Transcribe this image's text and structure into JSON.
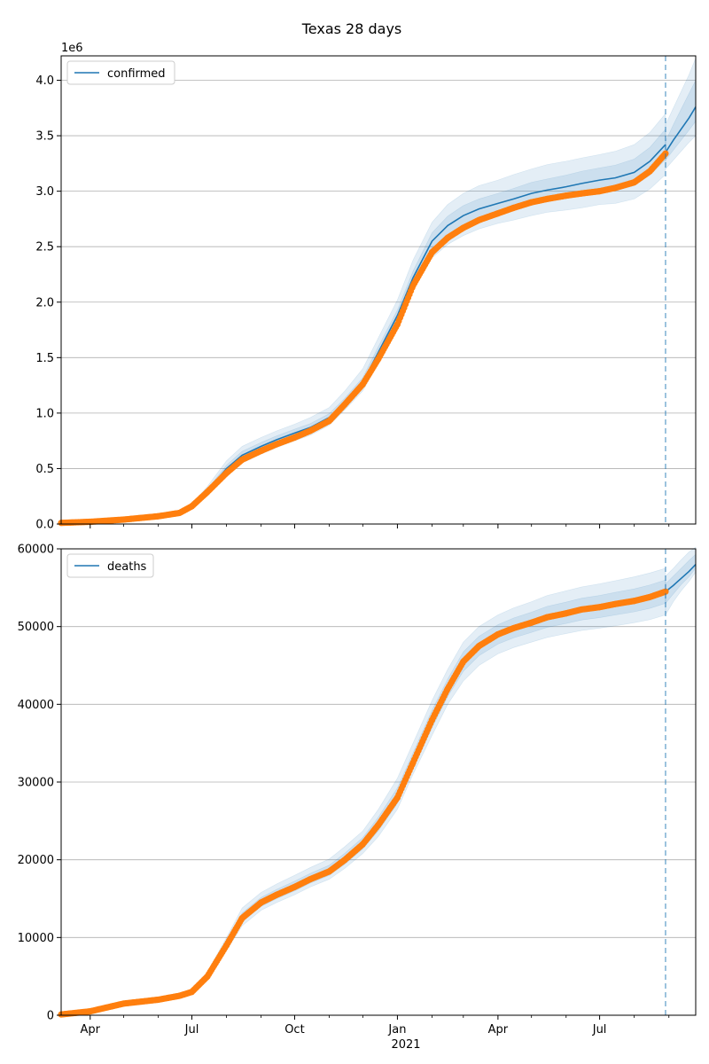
{
  "title": "Texas 28 days",
  "xaxis": {
    "start": "2020-03-06",
    "end": "2021-09-25",
    "ticks": [
      {
        "date": "2020-04-01",
        "label": "Apr"
      },
      {
        "date": "2020-07-01",
        "label": "Jul"
      },
      {
        "date": "2020-10-01",
        "label": "Oct"
      },
      {
        "date": "2021-01-01",
        "label": "Jan"
      },
      {
        "date": "2021-04-01",
        "label": "Apr"
      },
      {
        "date": "2021-07-01",
        "label": "Jul"
      }
    ],
    "minor_ticks": [
      "2020-05-01",
      "2020-06-01",
      "2020-08-01",
      "2020-09-01",
      "2020-11-01",
      "2020-12-01",
      "2021-02-01",
      "2021-03-01",
      "2021-05-01",
      "2021-06-01",
      "2021-08-01",
      "2021-09-01"
    ],
    "year_label": {
      "date": "2021-01-01",
      "label": "2021"
    },
    "forecast_start": "2021-08-29"
  },
  "colors": {
    "line": "#1f77b4",
    "observed": "#ff7f0e",
    "band": "#1f77b4",
    "grid": "#b0b0b0"
  },
  "chart_data": [
    {
      "type": "line",
      "title": "Texas 28 days",
      "ylim": [
        0,
        4.22
      ],
      "y_offset_label": "1e6",
      "y_ticks": [
        "0.0",
        "0.5",
        "1.0",
        "1.5",
        "2.0",
        "2.5",
        "3.0",
        "3.5",
        "4.0"
      ],
      "y_tick_values": [
        0,
        0.5,
        1.0,
        1.5,
        2.0,
        2.5,
        3.0,
        3.5,
        4.0
      ],
      "grid": "horizontal",
      "legend": "top-left",
      "series": [
        {
          "name": "confirmed",
          "kind": "model-line",
          "x": [
            "2020-03-06",
            "2020-04-01",
            "2020-05-01",
            "2020-06-01",
            "2020-06-20",
            "2020-07-01",
            "2020-07-15",
            "2020-08-01",
            "2020-08-15",
            "2020-09-01",
            "2020-09-15",
            "2020-10-01",
            "2020-10-15",
            "2020-11-01",
            "2020-11-15",
            "2020-12-01",
            "2020-12-15",
            "2021-01-01",
            "2021-01-15",
            "2021-02-01",
            "2021-02-15",
            "2021-03-01",
            "2021-03-15",
            "2021-04-01",
            "2021-04-15",
            "2021-05-01",
            "2021-05-15",
            "2021-06-01",
            "2021-06-15",
            "2021-07-01",
            "2021-07-15",
            "2021-08-01",
            "2021-08-15",
            "2021-08-29"
          ],
          "y": [
            0.01,
            0.02,
            0.04,
            0.07,
            0.1,
            0.16,
            0.3,
            0.5,
            0.62,
            0.7,
            0.76,
            0.82,
            0.87,
            0.96,
            1.1,
            1.28,
            1.55,
            1.88,
            2.22,
            2.55,
            2.69,
            2.78,
            2.84,
            2.89,
            2.93,
            2.98,
            3.01,
            3.04,
            3.07,
            3.1,
            3.12,
            3.17,
            3.27,
            3.42
          ]
        },
        {
          "name": "",
          "kind": "forecast-line",
          "x": [
            "2021-08-29",
            "2021-09-05",
            "2021-09-12",
            "2021-09-19",
            "2021-09-25"
          ],
          "y": [
            3.35,
            3.46,
            3.56,
            3.66,
            3.76
          ]
        },
        {
          "name": "",
          "kind": "observed-points",
          "x": [
            "2020-03-06",
            "2020-04-01",
            "2020-05-01",
            "2020-06-01",
            "2020-06-20",
            "2020-07-01",
            "2020-07-15",
            "2020-08-01",
            "2020-08-15",
            "2020-09-01",
            "2020-09-15",
            "2020-10-01",
            "2020-10-15",
            "2020-11-01",
            "2020-11-15",
            "2020-12-01",
            "2020-12-15",
            "2021-01-01",
            "2021-01-15",
            "2021-02-01",
            "2021-02-15",
            "2021-03-01",
            "2021-03-15",
            "2021-04-01",
            "2021-04-15",
            "2021-05-01",
            "2021-05-15",
            "2021-06-01",
            "2021-06-15",
            "2021-07-01",
            "2021-07-15",
            "2021-08-01",
            "2021-08-15",
            "2021-08-29"
          ],
          "y": [
            0.01,
            0.02,
            0.04,
            0.07,
            0.1,
            0.16,
            0.29,
            0.46,
            0.58,
            0.66,
            0.72,
            0.78,
            0.84,
            0.93,
            1.08,
            1.26,
            1.49,
            1.8,
            2.15,
            2.45,
            2.58,
            2.67,
            2.74,
            2.8,
            2.85,
            2.9,
            2.93,
            2.96,
            2.98,
            3.0,
            3.03,
            3.08,
            3.18,
            3.34
          ]
        }
      ],
      "bands": [
        {
          "lower": [
            0.01,
            0.02,
            0.04,
            0.06,
            0.09,
            0.14,
            0.27,
            0.44,
            0.55,
            0.63,
            0.69,
            0.75,
            0.8,
            0.89,
            1.03,
            1.2,
            1.45,
            1.78,
            2.1,
            2.4,
            2.52,
            2.6,
            2.66,
            2.71,
            2.74,
            2.78,
            2.81,
            2.83,
            2.85,
            2.88,
            2.89,
            2.93,
            3.02,
            3.15
          ],
          "upper": [
            0.01,
            0.02,
            0.04,
            0.08,
            0.11,
            0.18,
            0.34,
            0.57,
            0.7,
            0.78,
            0.84,
            0.9,
            0.96,
            1.05,
            1.2,
            1.4,
            1.68,
            2.02,
            2.38,
            2.72,
            2.88,
            2.98,
            3.05,
            3.1,
            3.15,
            3.2,
            3.24,
            3.27,
            3.3,
            3.33,
            3.36,
            3.42,
            3.53,
            3.7
          ]
        },
        {
          "lower": [
            0.01,
            0.02,
            0.04,
            0.065,
            0.095,
            0.15,
            0.285,
            0.47,
            0.585,
            0.665,
            0.725,
            0.785,
            0.835,
            0.925,
            1.065,
            1.24,
            1.5,
            1.83,
            2.16,
            2.475,
            2.605,
            2.69,
            2.75,
            2.8,
            2.835,
            2.88,
            2.91,
            2.935,
            2.96,
            2.99,
            3.005,
            3.05,
            3.145,
            3.285
          ],
          "upper": [
            0.01,
            0.02,
            0.04,
            0.075,
            0.105,
            0.17,
            0.315,
            0.53,
            0.655,
            0.735,
            0.795,
            0.855,
            0.905,
            0.995,
            1.135,
            1.32,
            1.6,
            1.93,
            2.28,
            2.625,
            2.775,
            2.87,
            2.93,
            2.98,
            3.025,
            3.08,
            3.11,
            3.145,
            3.18,
            3.21,
            3.235,
            3.29,
            3.395,
            3.56
          ]
        },
        {
          "lower": [
            3.2,
            3.28,
            3.36,
            3.44,
            3.5
          ],
          "upper": [
            3.6,
            3.75,
            3.9,
            4.05,
            4.2
          ]
        },
        {
          "lower": [
            3.28,
            3.37,
            3.46,
            3.55,
            3.63
          ],
          "upper": [
            3.45,
            3.6,
            3.74,
            3.88,
            4.0
          ]
        }
      ]
    },
    {
      "type": "line",
      "ylim": [
        0,
        60000
      ],
      "y_ticks": [
        "0",
        "10000",
        "20000",
        "30000",
        "40000",
        "50000",
        "60000"
      ],
      "y_tick_values": [
        0,
        10000,
        20000,
        30000,
        40000,
        50000,
        60000
      ],
      "grid": "horizontal",
      "legend": "top-left",
      "series": [
        {
          "name": "deaths",
          "kind": "model-line",
          "x": [
            "2021-08-29",
            "2021-09-05",
            "2021-09-12",
            "2021-09-19",
            "2021-09-25"
          ],
          "y": [
            54500,
            55300,
            56200,
            57100,
            58000
          ]
        },
        {
          "name": "",
          "kind": "observed-points",
          "x": [
            "2020-03-06",
            "2020-04-01",
            "2020-05-01",
            "2020-06-01",
            "2020-06-20",
            "2020-07-01",
            "2020-07-15",
            "2020-08-01",
            "2020-08-15",
            "2020-09-01",
            "2020-09-15",
            "2020-10-01",
            "2020-10-15",
            "2020-11-01",
            "2020-11-15",
            "2020-12-01",
            "2020-12-15",
            "2021-01-01",
            "2021-01-15",
            "2021-02-01",
            "2021-02-15",
            "2021-03-01",
            "2021-03-15",
            "2021-04-01",
            "2021-04-15",
            "2021-05-01",
            "2021-05-15",
            "2021-06-01",
            "2021-06-15",
            "2021-07-01",
            "2021-07-15",
            "2021-08-01",
            "2021-08-15",
            "2021-08-29"
          ],
          "y": [
            100,
            500,
            1500,
            2000,
            2500,
            3000,
            5000,
            9000,
            12500,
            14500,
            15500,
            16500,
            17500,
            18500,
            20000,
            22000,
            24500,
            28000,
            32500,
            38000,
            42000,
            45500,
            47500,
            49000,
            49800,
            50500,
            51200,
            51700,
            52200,
            52500,
            52900,
            53300,
            53800,
            54500
          ]
        }
      ],
      "bands": [
        {
          "lower": [
            100,
            500,
            1400,
            1900,
            2300,
            2800,
            4600,
            8300,
            11500,
            13500,
            14500,
            15500,
            16500,
            17500,
            18900,
            20800,
            23000,
            26500,
            31000,
            36000,
            40000,
            43000,
            45000,
            46500,
            47300,
            48000,
            48600,
            49100,
            49500,
            49800,
            50100,
            50500,
            50900,
            51500
          ],
          "upper": [
            100,
            500,
            1600,
            2100,
            2700,
            3300,
            5600,
            10000,
            13800,
            15800,
            16900,
            18000,
            19000,
            20100,
            21700,
            23700,
            26500,
            30500,
            35000,
            40500,
            44500,
            48000,
            50000,
            51500,
            52400,
            53200,
            54000,
            54600,
            55100,
            55500,
            55900,
            56400,
            56900,
            57500
          ]
        },
        {
          "lower": [
            100,
            500,
            1450,
            1950,
            2400,
            2900,
            4800,
            8650,
            12000,
            14000,
            15000,
            16000,
            17000,
            18000,
            19450,
            21400,
            23750,
            27250,
            31750,
            37000,
            41000,
            44250,
            46250,
            47750,
            48550,
            49250,
            49900,
            50400,
            50850,
            51150,
            51500,
            51900,
            52350,
            53000
          ],
          "upper": [
            100,
            500,
            1550,
            2050,
            2600,
            3150,
            5300,
            9500,
            13150,
            15150,
            16200,
            17250,
            18250,
            19300,
            20850,
            22850,
            25500,
            29250,
            33750,
            39250,
            43250,
            46750,
            48750,
            50250,
            51100,
            51850,
            52600,
            53150,
            53650,
            54000,
            54400,
            54850,
            55350,
            56000
          ]
        },
        {
          "lower": [
            51500,
            53200,
            54600,
            55800,
            57000
          ],
          "upper": [
            56500,
            57500,
            58600,
            59600,
            60200
          ]
        },
        {
          "lower": [
            53000,
            54200,
            55400,
            56400,
            57500
          ],
          "upper": [
            55500,
            56500,
            57500,
            58500,
            59300
          ]
        }
      ]
    }
  ]
}
